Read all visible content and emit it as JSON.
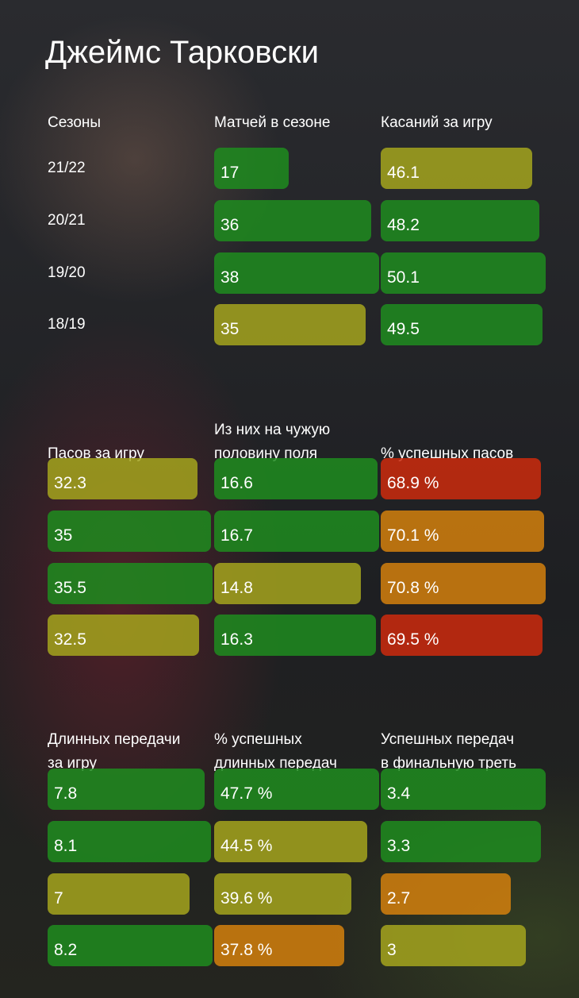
{
  "title": "Джеймс Тарковски",
  "colors": {
    "green": "#1f8c1f",
    "yellow": "#a5a51d",
    "orange": "#d4800d",
    "red": "#cc2a0d"
  },
  "chart_data": [
    {
      "type": "table",
      "seasons_header": "Сезоны",
      "seasons": [
        "21/22",
        "20/21",
        "19/20",
        "18/19"
      ],
      "columns": [
        {
          "name": "Матчей в сезоне",
          "labels": [
            "17",
            "36",
            "38",
            "35"
          ],
          "values": [
            17,
            36,
            38,
            35
          ],
          "fill": [
            0.45,
            0.95,
            1.0,
            0.92
          ],
          "colors": [
            "green",
            "green",
            "green",
            "yellow"
          ]
        },
        {
          "name": "Касаний за игру",
          "labels": [
            "46.1",
            "48.2",
            "50.1",
            "49.5"
          ],
          "values": [
            46.1,
            48.2,
            50.1,
            49.5
          ],
          "fill": [
            0.92,
            0.96,
            1.0,
            0.98
          ],
          "colors": [
            "yellow",
            "green",
            "green",
            "green"
          ]
        }
      ]
    },
    {
      "type": "table",
      "columns": [
        {
          "name": "Пасов за игру",
          "labels": [
            "32.3",
            "35",
            "35.5",
            "32.5"
          ],
          "values": [
            32.3,
            35,
            35.5,
            32.5
          ],
          "fill": [
            0.91,
            0.99,
            1.0,
            0.92
          ],
          "colors": [
            "yellow",
            "green",
            "green",
            "yellow"
          ]
        },
        {
          "name": "Из них на чужую\nполовину поля",
          "labels": [
            "16.6",
            "16.7",
            "14.8",
            "16.3"
          ],
          "values": [
            16.6,
            16.7,
            14.8,
            16.3
          ],
          "fill": [
            0.99,
            1.0,
            0.89,
            0.98
          ],
          "colors": [
            "green",
            "green",
            "yellow",
            "green"
          ]
        },
        {
          "name": "% успешных пасов",
          "labels": [
            "68.9 %",
            "70.1 %",
            "70.8 %",
            "69.5 %"
          ],
          "values": [
            68.9,
            70.1,
            70.8,
            69.5
          ],
          "fill": [
            0.97,
            0.99,
            1.0,
            0.98
          ],
          "colors": [
            "red",
            "orange",
            "orange",
            "red"
          ]
        }
      ]
    },
    {
      "type": "table",
      "columns": [
        {
          "name": "Длинных передачи\nза игру",
          "labels": [
            "7.8",
            "8.1",
            "7",
            "8.2"
          ],
          "values": [
            7.8,
            8.1,
            7,
            8.2
          ],
          "fill": [
            0.95,
            0.99,
            0.86,
            1.0
          ],
          "colors": [
            "green",
            "green",
            "yellow",
            "green"
          ]
        },
        {
          "name": "% успешных\nдлинных передач",
          "labels": [
            "47.7 %",
            "44.5 %",
            "39.6 %",
            "37.8 %"
          ],
          "values": [
            47.7,
            44.5,
            39.6,
            37.8
          ],
          "fill": [
            1.0,
            0.93,
            0.83,
            0.79
          ],
          "colors": [
            "green",
            "yellow",
            "yellow",
            "orange"
          ]
        },
        {
          "name": "Успешных передач\nв финальную треть",
          "labels": [
            "3.4",
            "3.3",
            "2.7",
            "3"
          ],
          "values": [
            3.4,
            3.3,
            2.7,
            3
          ],
          "fill": [
            1.0,
            0.97,
            0.79,
            0.88
          ],
          "colors": [
            "green",
            "green",
            "orange",
            "yellow"
          ]
        }
      ]
    }
  ]
}
